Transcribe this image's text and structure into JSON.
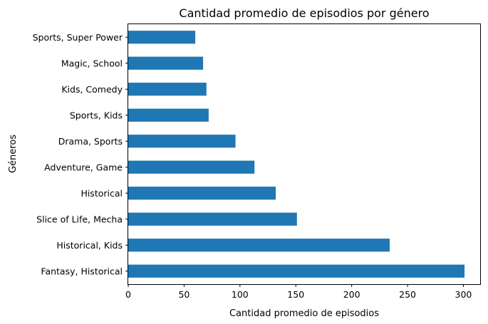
{
  "chart_data": {
    "type": "bar",
    "orientation": "horizontal",
    "title": "Cantidad promedio de episodios por género",
    "xlabel": "Cantidad promedio de episodios",
    "ylabel": "Géneros",
    "categories": [
      "Sports, Super Power",
      "Magic, School",
      "Kids, Comedy",
      "Sports, Kids",
      "Drama, Sports",
      "Adventure, Game",
      "Historical",
      "Slice of Life, Mecha",
      "Historical, Kids",
      "Fantasy, Historical"
    ],
    "values": [
      60,
      67,
      70,
      72,
      96,
      113,
      132,
      151,
      234,
      301
    ],
    "xlim": [
      0,
      315
    ],
    "xticks": [
      "0",
      "50",
      "100",
      "150",
      "200",
      "250",
      "300"
    ],
    "grid": false,
    "bar_color": "#1f77b4"
  }
}
